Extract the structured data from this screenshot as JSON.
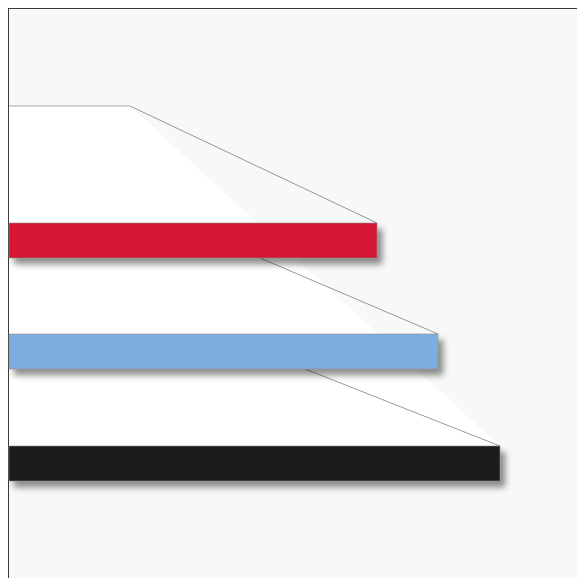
{
  "colors": {
    "page_background": "#ffffff",
    "panel_background": "#f7f9f9",
    "panel_border": "#3a3a3a",
    "white_shape": "#ffffff",
    "outline": "#8a8a8a",
    "bar_red": "#d51336",
    "bar_blue": "#7eade0",
    "bar_black": "#1c1a1b",
    "shadow": "#000000"
  },
  "bars": [
    {
      "name": "red-bar",
      "color_key": "bar_red"
    },
    {
      "name": "blue-bar",
      "color_key": "bar_blue"
    },
    {
      "name": "black-bar",
      "color_key": "bar_black"
    }
  ]
}
